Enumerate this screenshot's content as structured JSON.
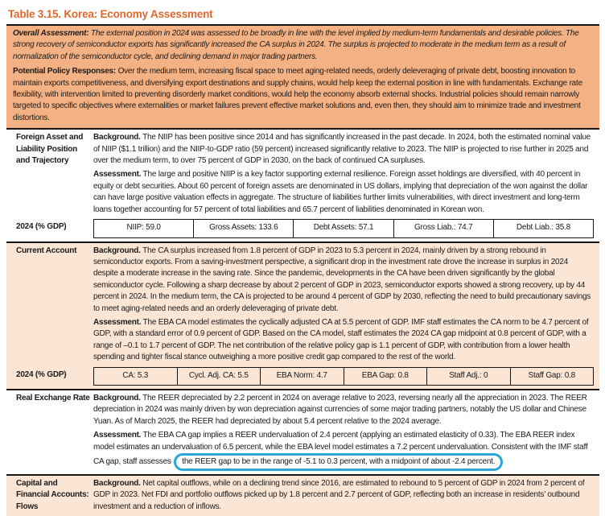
{
  "colors": {
    "title_orange": "#e0682f",
    "overall_box_bg": "#f4b183",
    "peach_row_bg": "#fbe5d5",
    "highlight_blue": "#2ba6db",
    "rule_black": "#151515"
  },
  "title": "Table 3.15. Korea: Economy Assessment",
  "labels": {
    "background": "Background.",
    "assessment": "Assessment."
  },
  "overall_box": {
    "overall_label": "Overall Assessment:",
    "overall_text": "The external position in 2024 was assessed to be broadly in line with the level implied by medium-term fundamentals and desirable policies. The strong recovery of semiconductor exports has significantly increased the CA surplus in 2024. The surplus is projected to moderate in the medium term as a result of normalization of the semiconductor cycle, and declining demand in major trading partners.",
    "policy_label": "Potential Policy Responses:",
    "policy_text": "Over the medium term, increasing fiscal space to meet aging-related needs, orderly deleveraging of private debt, boosting innovation to maintain exports competitiveness, and diversifying export destinations and supply chains, would help keep the external position in line with fundamentals. Exchange rate flexibility, with intervention limited to preventing disorderly market conditions, would help the economy absorb external shocks. Industrial policies should remain narrowly targeted to specific objectives where externalities or market failures prevent effective market solutions and, even then, they should aim to minimize trade and investment distortions."
  },
  "sections": [
    {
      "label": "Foreign Asset and Liability Position and Trajectory",
      "background": "The NIIP has been positive since 2014 and has significantly increased in the past decade. In 2024, both the estimated nominal value of NIIP ($1.1 trillion) and the NIIP-to-GDP ratio (59 percent) increased significantly relative to 2023. The NIIP is projected to rise further in 2025 and over the medium term, to over 75 percent of GDP in 2030, on the back of continued CA surpluses.",
      "assessment": "The large and positive NIIP is a key factor supporting external resilience. Foreign asset holdings are diversified, with 40 percent in equity or debt securities. About 60 percent of foreign assets are denominated in US dollars, implying that depreciation of the won against the dollar can have large positive valuation effects in aggregate. The structure of liabilities further limits vulnerabilities, with direct investment and long-term loans together accounting for 57 percent of total liabilities and 65.7 percent of liabilities denominated in Korean won.",
      "stats_label": "2024 (% GDP)",
      "stats": [
        "NIIP: 59.0",
        "Gross Assets: 133.6",
        "Debt Assets: 57.1",
        "Gross Liab.: 74.7",
        "Debt Liab.: 35.8"
      ]
    },
    {
      "label": "Current Account",
      "background": "The CA surplus increased from 1.8 percent of GDP in 2023 to 5.3 percent in 2024, mainly driven by a strong rebound in semiconductor exports. From a saving-investment perspective, a significant drop in the investment rate drove the increase in surplus in 2024 despite a moderate increase in the saving rate. Since the pandemic, developments in the CA have been driven significantly by the global semiconductor cycle. Following a sharp decrease by about 2 percent of GDP in 2023, semiconductor exports showed a strong recovery, up by 44 percent in 2024. In the medium term, the CA is projected to be around 4 percent of GDP by 2030, reflecting the need to build precautionary savings to meet aging-related needs and an orderly deleveraging of private debt.",
      "assessment": "The EBA CA model estimates the cyclically adjusted CA at 5.5 percent of GDP. IMF staff estimates the CA norm to be 4.7 percent of GDP, with a standard error of 0.9 percent of GDP. Based on the CA model, staff estimates the 2024 CA gap midpoint at 0.8 percent of GDP, with a range of –0.1 to 1.7 percent of GDP. The net contribution of the relative policy gap is 1.1 percent of GDP, with contribution from a lower health spending and tighter fiscal stance outweighing a more positive credit gap compared to the rest of the world.",
      "stats_label": "2024 (% GDP)",
      "stats": [
        "CA: 5.3",
        "Cycl. Adj. CA: 5.5",
        "EBA Norm: 4.7",
        "EBA Gap: 0.8",
        "Staff Adj.: 0",
        "Staff Gap: 0.8"
      ]
    },
    {
      "label": "Real Exchange Rate",
      "background": "The REER depreciated by 2.2 percent in 2024 on average relative to 2023, reversing nearly all the appreciation in 2023. The REER depreciation in 2024 was mainly driven by won depreciation against currencies of some major trading partners, notably the US dollar and Chinese Yuan. As of March 2025, the REER had depreciated by about 5.4 percent relative to the 2024 average.",
      "assessment_pre": "The EBA CA gap implies a REER undervaluation of 2.4 percent (applying an estimated elasticity of 0.33). The EBA REER index model estimates an undervaluation of 6.5 percent, while the EBA level model estimates a 7.2 percent undervaluation. Consistent with the IMF staff CA gap, staff assesses",
      "assessment_highlight": "the REER gap to be in the range of -5.1 to 0.3 percent, with a midpoint of about -2.4 percent."
    },
    {
      "label": "Capital and Financial Accounts: Flows",
      "background": "Net capital outflows, while on a declining trend since 2016, are estimated to rebound to 5 percent of GDP in 2024 from 2 percent of GDP in 2023. Net FDI and portfolio outflows picked up by 1.8 percent and 2.7 percent of GDP, reflecting both an increase in residents’ outbound investment and a reduction of inflows."
    }
  ]
}
